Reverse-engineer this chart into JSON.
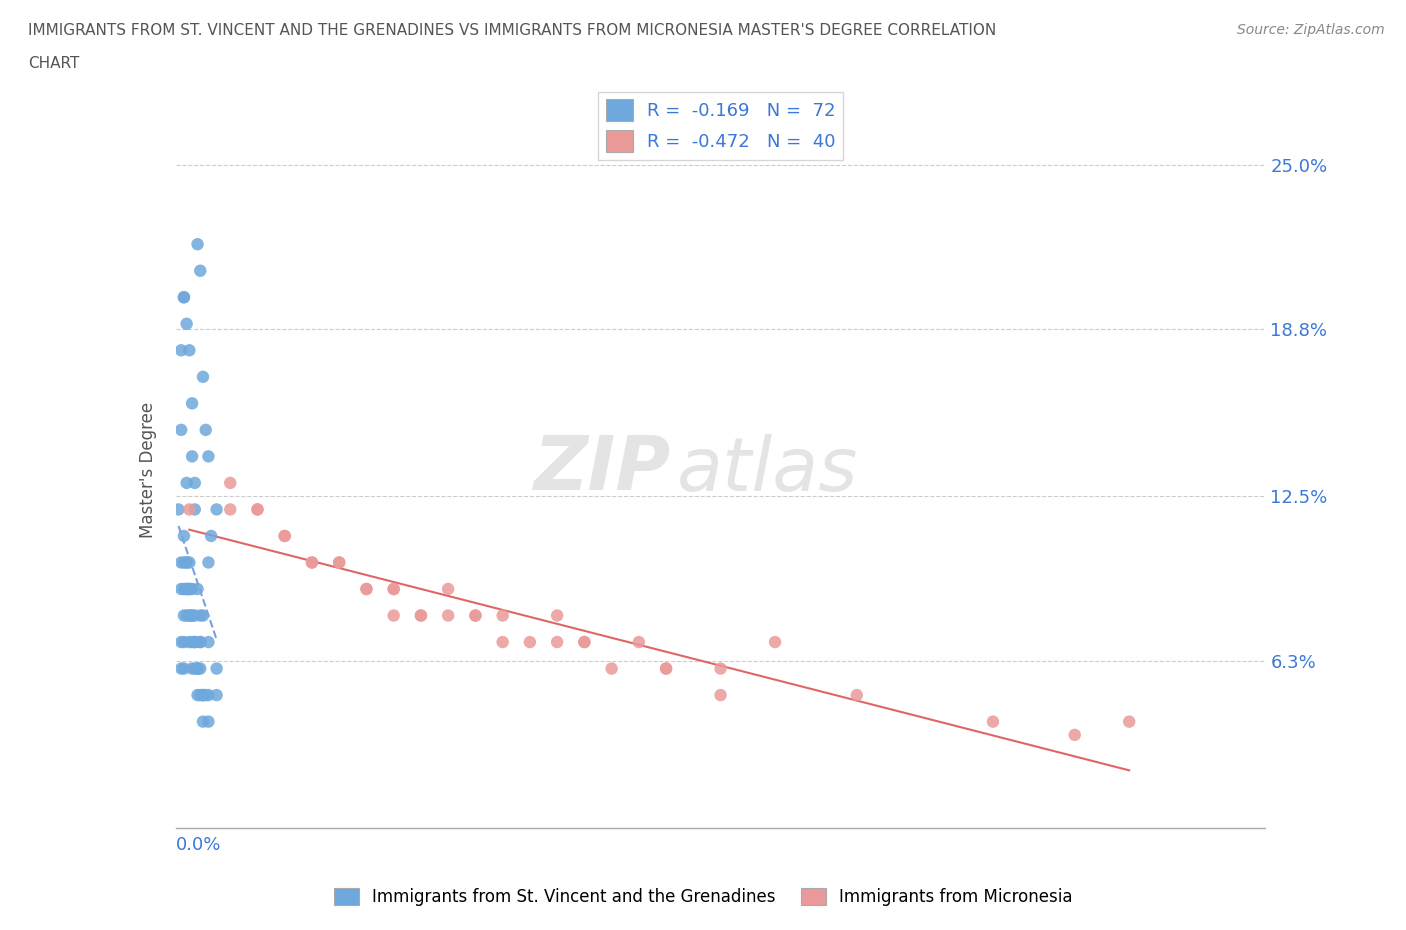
{
  "title_line1": "IMMIGRANTS FROM ST. VINCENT AND THE GRENADINES VS IMMIGRANTS FROM MICRONESIA MASTER'S DEGREE CORRELATION",
  "title_line2": "CHART",
  "source": "Source: ZipAtlas.com",
  "ylabel": "Master's Degree",
  "yticks": [
    "25.0%",
    "18.8%",
    "12.5%",
    "6.3%"
  ],
  "ytick_vals": [
    0.25,
    0.188,
    0.125,
    0.063
  ],
  "xmin": 0.0,
  "xmax": 0.4,
  "ymin": 0.0,
  "ymax": 0.27,
  "blue_color": "#6fa8dc",
  "pink_color": "#ea9999",
  "blue_line_color": "#3c78d8",
  "pink_line_color": "#e06666",
  "legend_R1": "-0.169",
  "legend_N1": "72",
  "legend_R2": "-0.472",
  "legend_N2": "40",
  "watermark_zip": "ZIP",
  "watermark_atlas": "atlas",
  "blue_scatter_x": [
    0.005,
    0.008,
    0.002,
    0.003,
    0.01,
    0.012,
    0.006,
    0.004,
    0.007,
    0.009,
    0.015,
    0.011,
    0.013,
    0.003,
    0.005,
    0.002,
    0.004,
    0.008,
    0.006,
    0.01,
    0.007,
    0.009,
    0.012,
    0.003,
    0.005,
    0.015,
    0.004,
    0.006,
    0.002,
    0.008,
    0.01,
    0.005,
    0.007,
    0.003,
    0.009,
    0.012,
    0.004,
    0.006,
    0.002,
    0.011,
    0.007,
    0.005,
    0.008,
    0.003,
    0.01,
    0.006,
    0.004,
    0.009,
    0.012,
    0.003,
    0.005,
    0.002,
    0.007,
    0.006,
    0.008,
    0.01,
    0.004,
    0.009,
    0.003,
    0.005,
    0.002,
    0.007,
    0.006,
    0.008,
    0.01,
    0.004,
    0.003,
    0.001,
    0.009,
    0.005,
    0.012,
    0.015
  ],
  "blue_scatter_y": [
    0.18,
    0.22,
    0.15,
    0.2,
    0.17,
    0.14,
    0.16,
    0.19,
    0.13,
    0.21,
    0.12,
    0.15,
    0.11,
    0.2,
    0.1,
    0.18,
    0.13,
    0.09,
    0.14,
    0.08,
    0.12,
    0.07,
    0.1,
    0.06,
    0.09,
    0.05,
    0.08,
    0.07,
    0.06,
    0.05,
    0.04,
    0.07,
    0.06,
    0.08,
    0.05,
    0.04,
    0.09,
    0.06,
    0.07,
    0.05,
    0.08,
    0.09,
    0.06,
    0.07,
    0.05,
    0.08,
    0.09,
    0.06,
    0.05,
    0.1,
    0.08,
    0.09,
    0.07,
    0.08,
    0.06,
    0.05,
    0.1,
    0.07,
    0.09,
    0.08,
    0.1,
    0.07,
    0.09,
    0.06,
    0.05,
    0.1,
    0.11,
    0.12,
    0.08,
    0.09,
    0.07,
    0.06
  ],
  "pink_scatter_x": [
    0.005,
    0.1,
    0.15,
    0.18,
    0.05,
    0.08,
    0.22,
    0.12,
    0.04,
    0.2,
    0.17,
    0.14,
    0.07,
    0.09,
    0.03,
    0.11,
    0.06,
    0.13,
    0.16,
    0.25,
    0.3,
    0.02,
    0.08,
    0.12,
    0.35,
    0.04,
    0.07,
    0.15,
    0.2,
    0.1,
    0.05,
    0.02,
    0.08,
    0.03,
    0.14,
    0.11,
    0.33,
    0.06,
    0.09,
    0.18
  ],
  "pink_scatter_y": [
    0.12,
    0.09,
    0.07,
    0.06,
    0.1,
    0.08,
    0.07,
    0.08,
    0.11,
    0.06,
    0.07,
    0.08,
    0.09,
    0.08,
    0.12,
    0.08,
    0.1,
    0.07,
    0.06,
    0.05,
    0.04,
    0.12,
    0.09,
    0.07,
    0.04,
    0.11,
    0.09,
    0.07,
    0.05,
    0.08,
    0.1,
    0.13,
    0.09,
    0.12,
    0.07,
    0.08,
    0.035,
    0.1,
    0.08,
    0.06
  ]
}
